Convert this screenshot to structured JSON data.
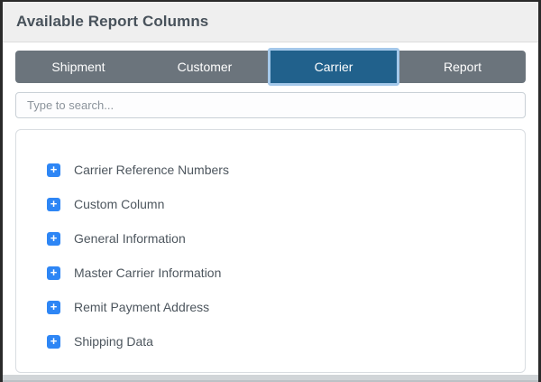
{
  "window": {
    "title": "Available Report Columns"
  },
  "tabs": [
    {
      "label": "Shipment",
      "active": false
    },
    {
      "label": "Customer",
      "active": false
    },
    {
      "label": "Carrier",
      "active": true
    },
    {
      "label": "Report",
      "active": false
    }
  ],
  "search": {
    "placeholder": "Type to search..."
  },
  "list": {
    "items": [
      {
        "label": "Carrier Reference Numbers"
      },
      {
        "label": "Custom Column"
      },
      {
        "label": "General Information"
      },
      {
        "label": "Master Carrier Information"
      },
      {
        "label": "Remit Payment Address"
      },
      {
        "label": "Shipping Data"
      }
    ]
  },
  "icons": {
    "expand_plus": "+"
  },
  "colors": {
    "active_tab": "#21618c",
    "active_tab_border": "#a4c8ea",
    "inactive_tab_bar": "#6b747c",
    "expand_icon_blue": "#2e86f5",
    "title_text": "#48525b"
  }
}
